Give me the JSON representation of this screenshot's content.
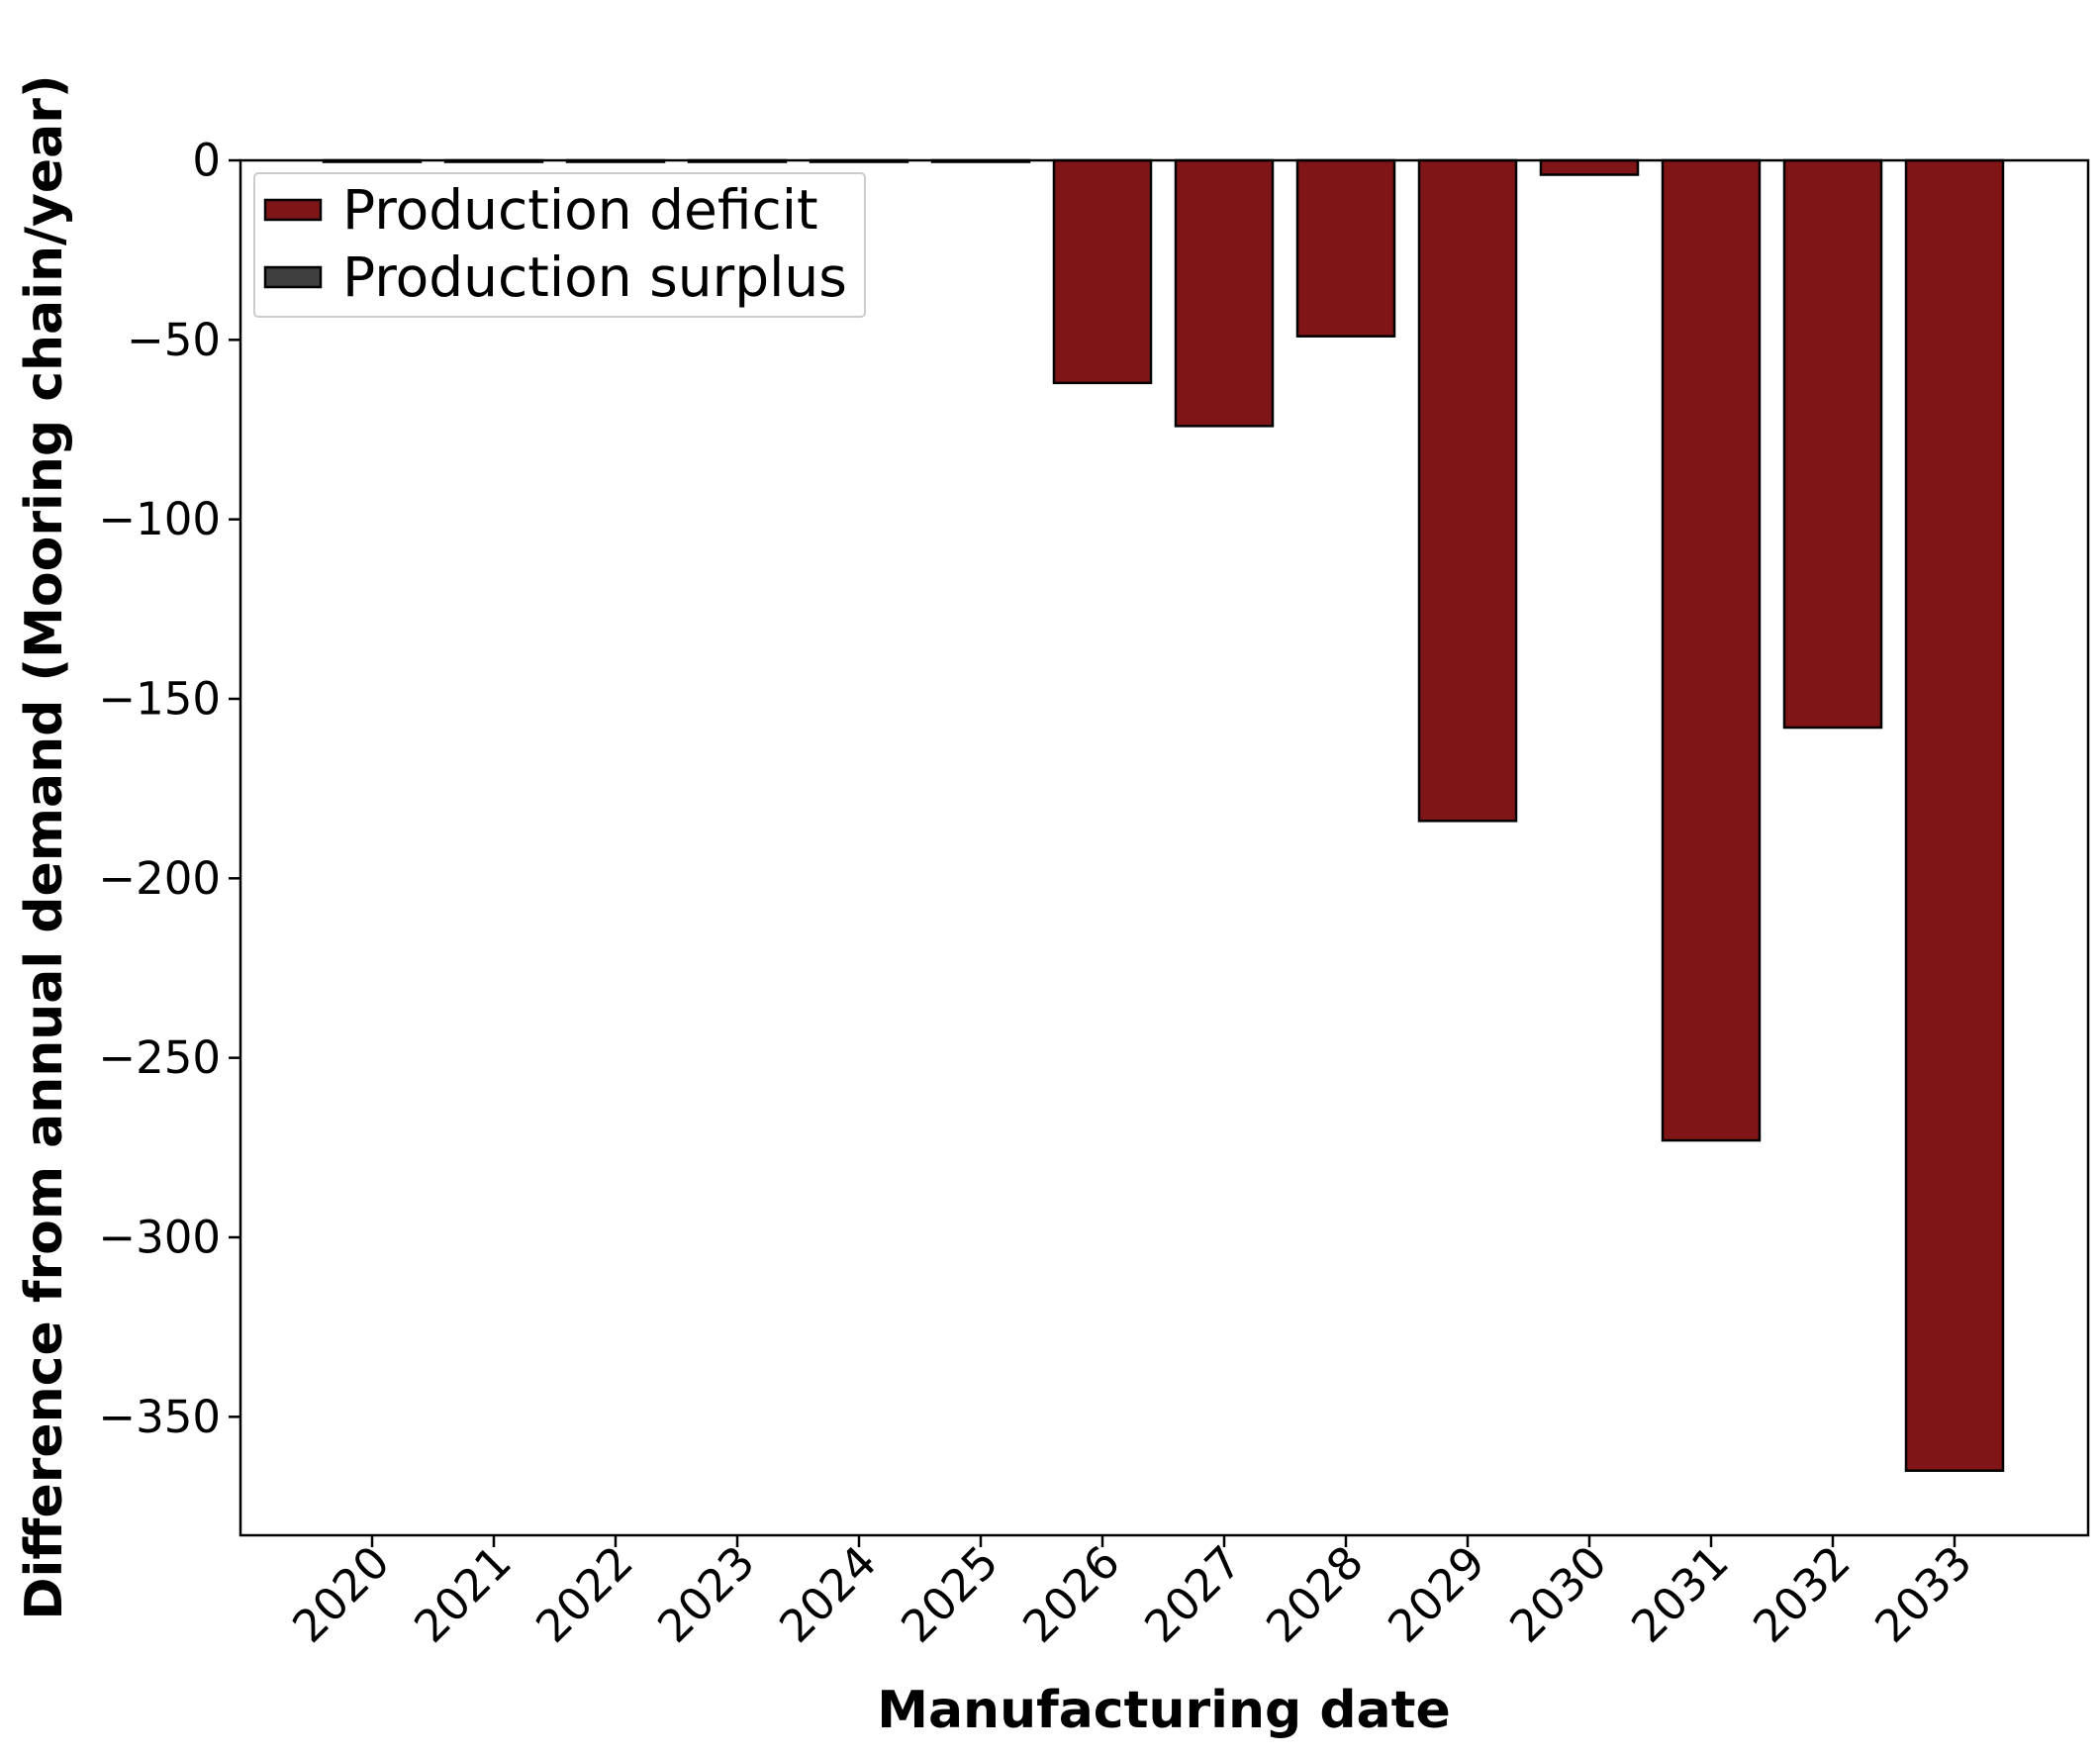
{
  "chart_data": {
    "type": "bar",
    "xlabel": "Manufacturing date",
    "ylabel": "Difference from annual demand (Mooring chain/year)",
    "categories": [
      "2020",
      "2021",
      "2022",
      "2023",
      "2024",
      "2025",
      "2026",
      "2027",
      "2028",
      "2029",
      "2030",
      "2031",
      "2032",
      "2033"
    ],
    "series": [
      {
        "name": "Production deficit",
        "color": "#7f1517",
        "values": [
          0,
          0,
          0,
          0,
          0,
          0,
          -62,
          -74,
          -49,
          -184,
          -4,
          -273,
          -158,
          -365
        ]
      },
      {
        "name": "Production surplus",
        "color": "#3f3f3f",
        "values": [
          0,
          0,
          0,
          0,
          0,
          0,
          0,
          0,
          0,
          0,
          0,
          0,
          0,
          0
        ]
      }
    ],
    "ylim": [
      -383,
      0
    ],
    "yticks": [
      0,
      -50,
      -100,
      -150,
      -200,
      -250,
      -300,
      -350
    ],
    "ytick_labels": [
      "0",
      "−50",
      "−100",
      "−150",
      "−200",
      "−250",
      "−300",
      "−350"
    ],
    "legend_position": "top-left",
    "grid": false
  }
}
